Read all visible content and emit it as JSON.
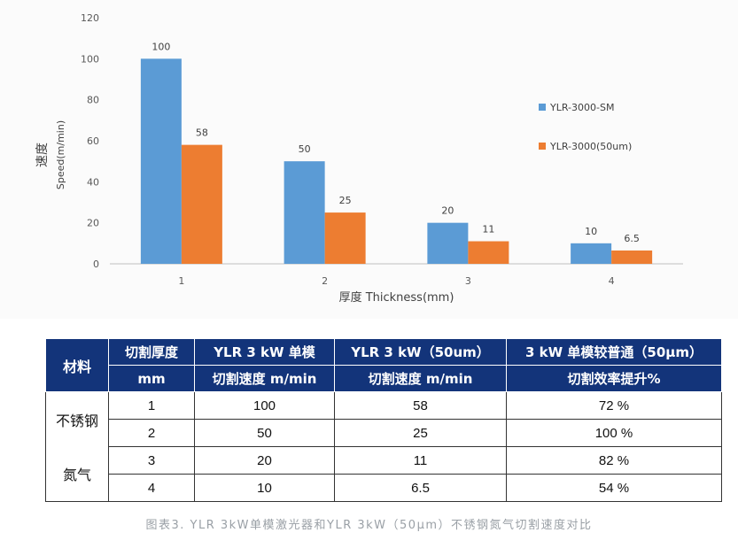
{
  "chart_data": {
    "type": "bar",
    "categories": [
      "1",
      "2",
      "3",
      "4"
    ],
    "series": [
      {
        "name": "YLR-3000-SM",
        "values": [
          100,
          50,
          20,
          10
        ],
        "labels": [
          "100",
          "50",
          "20",
          "10"
        ],
        "color": "#5b9bd5"
      },
      {
        "name": "YLR-3000(50um)",
        "values": [
          58,
          25,
          11,
          6.5
        ],
        "labels": [
          "58",
          "25",
          "11",
          "6.5"
        ],
        "color": "#ed7d31"
      }
    ],
    "ylim": [
      0,
      120
    ],
    "yticks": [
      "0",
      "20",
      "40",
      "60",
      "80",
      "100",
      "120"
    ],
    "ylabel_cn": "速度",
    "ylabel_en": "Speed(m/min)",
    "xlabel": "厚度 Thickness(mm)",
    "legend_position": "right",
    "grid": false
  },
  "table": {
    "header": {
      "material": "材料",
      "thickness_1": "切割厚度",
      "thickness_2": "mm",
      "col_a_1": "YLR 3 kW 单模",
      "col_a_2": "切割速度 m/min",
      "col_b_1": "YLR 3 kW（50um）",
      "col_b_2": "切割速度 m/min",
      "col_c_1": "3 kW 单模较普通（50μm）",
      "col_c_2": "切割效率提升%"
    },
    "group_1": "不锈钢",
    "group_2": "氮气",
    "rows": [
      {
        "thickness": "1",
        "a": "100",
        "b": "58",
        "c": "72 %"
      },
      {
        "thickness": "2",
        "a": "50",
        "b": "25",
        "c": "100 %"
      },
      {
        "thickness": "3",
        "a": "20",
        "b": "11",
        "c": "82 %"
      },
      {
        "thickness": "4",
        "a": "10",
        "b": "6.5",
        "c": "54 %"
      }
    ]
  },
  "caption": "图表3. YLR 3kW单模激光器和YLR 3kW（50μm）不锈钢氮气切割速度对比"
}
